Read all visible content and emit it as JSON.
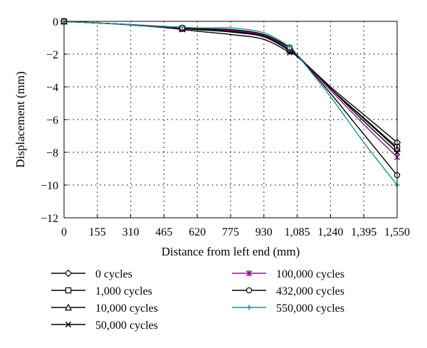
{
  "chart_data": {
    "type": "line",
    "xlabel": "Distance from left end (mm)",
    "ylabel": "Displacement (mm)",
    "xlim": [
      0,
      1550
    ],
    "ylim": [
      -12,
      0
    ],
    "xticks": [
      "0",
      "155",
      "310",
      "465",
      "620",
      "775",
      "930",
      "1,085",
      "1,240",
      "1,395",
      "1,550"
    ],
    "yticks": [
      "0",
      "−2",
      "−4",
      "−6",
      "−8",
      "−10",
      "−12"
    ],
    "grid": true,
    "grid_style": "dotted",
    "legend_position": "bottom",
    "x": [
      0,
      155,
      310,
      465,
      620,
      775,
      930,
      1050,
      1085,
      1240,
      1395,
      1550
    ],
    "series": [
      {
        "name": "0 cycles",
        "color": "#000000",
        "marker": "diamond",
        "values": [
          0,
          -0.1,
          -0.2,
          -0.35,
          -0.5,
          -0.65,
          -0.95,
          -1.8,
          -2.1,
          -4.0,
          -5.7,
          -7.4
        ]
      },
      {
        "name": "1,000 cycles",
        "color": "#000000",
        "marker": "square",
        "values": [
          0,
          -0.1,
          -0.2,
          -0.35,
          -0.5,
          -0.6,
          -0.9,
          -1.75,
          -2.1,
          -4.1,
          -5.9,
          -7.7
        ]
      },
      {
        "name": "10,000 cycles",
        "color": "#000000",
        "marker": "triangle",
        "values": [
          0,
          -0.1,
          -0.2,
          -0.35,
          -0.5,
          -0.6,
          -0.9,
          -1.75,
          -2.1,
          -4.1,
          -5.95,
          -7.8
        ]
      },
      {
        "name": "50,000 cycles",
        "color": "#000000",
        "marker": "x",
        "values": [
          0,
          -0.1,
          -0.22,
          -0.38,
          -0.6,
          -0.8,
          -1.1,
          -1.9,
          -2.15,
          -4.1,
          -6.1,
          -8.0
        ]
      },
      {
        "name": "100,000 cycles",
        "color": "#8b1a8b",
        "marker": "star",
        "values": [
          0,
          -0.1,
          -0.2,
          -0.35,
          -0.45,
          -0.55,
          -0.85,
          -1.65,
          -2.05,
          -4.2,
          -6.3,
          -8.3
        ]
      },
      {
        "name": "432,000 cycles",
        "color": "#000000",
        "marker": "circle",
        "values": [
          0,
          -0.1,
          -0.2,
          -0.32,
          -0.45,
          -0.5,
          -0.8,
          -1.6,
          -2.05,
          -4.4,
          -6.9,
          -9.4
        ]
      },
      {
        "name": "550,000 cycles",
        "color": "#1f8f8f",
        "marker": "plus",
        "values": [
          0,
          -0.1,
          -0.2,
          -0.3,
          -0.4,
          -0.4,
          -0.7,
          -1.55,
          -2.05,
          -4.6,
          -7.4,
          -10.0
        ]
      }
    ],
    "marker_x": [
      0,
      550,
      1050,
      1550
    ]
  }
}
